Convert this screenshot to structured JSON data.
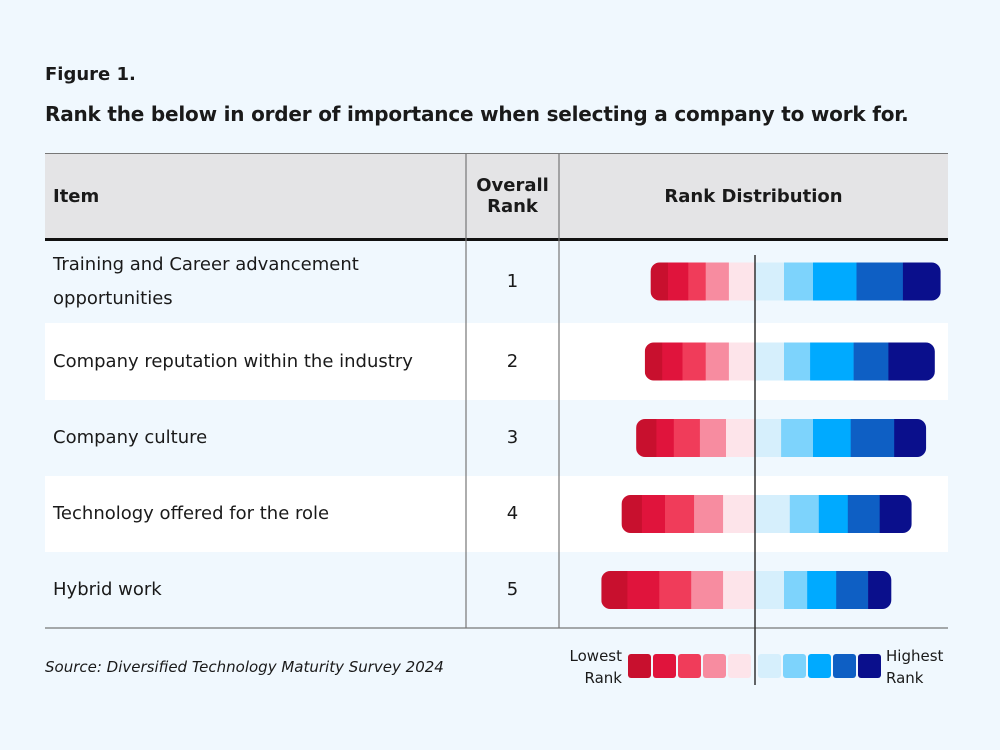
{
  "figure_label": "Figure 1.",
  "title": "Rank the below in order of importance when selecting a company to work for.",
  "table": {
    "headers": [
      "Item",
      "Overall Rank",
      "Rank Distribution"
    ],
    "rows": [
      [
        "Training and Career advancement opportunities",
        "1"
      ],
      [
        "Company reputation within the industry",
        "2"
      ],
      [
        "Company culture",
        "3"
      ],
      [
        "Technology offered for the role",
        "4"
      ],
      [
        "Hybrid work",
        "5"
      ]
    ]
  },
  "distribution": {
    "colors": [
      "#c8102e",
      "#e0143c",
      "#f03c5a",
      "#f78ca0",
      "#fde4ea",
      "#d6effc",
      "#7dd3fc",
      "#00aaff",
      "#0e5fc4",
      "#0a0f8c"
    ],
    "rows": [
      [
        6,
        7,
        6,
        8,
        9,
        10,
        10,
        15,
        16,
        13
      ],
      [
        6,
        7,
        8,
        8,
        9,
        10,
        9,
        15,
        12,
        16
      ],
      [
        7,
        6,
        9,
        9,
        10,
        9,
        11,
        13,
        15,
        11
      ],
      [
        7,
        8,
        10,
        10,
        11,
        12,
        10,
        10,
        11,
        11
      ],
      [
        9,
        11,
        11,
        11,
        11,
        10,
        8,
        10,
        11,
        8
      ]
    ]
  },
  "source": "Source: Diversified Technology Maturity Survey 2024",
  "legend": {
    "low": "Lowest Rank",
    "high": "Highest Rank"
  }
}
